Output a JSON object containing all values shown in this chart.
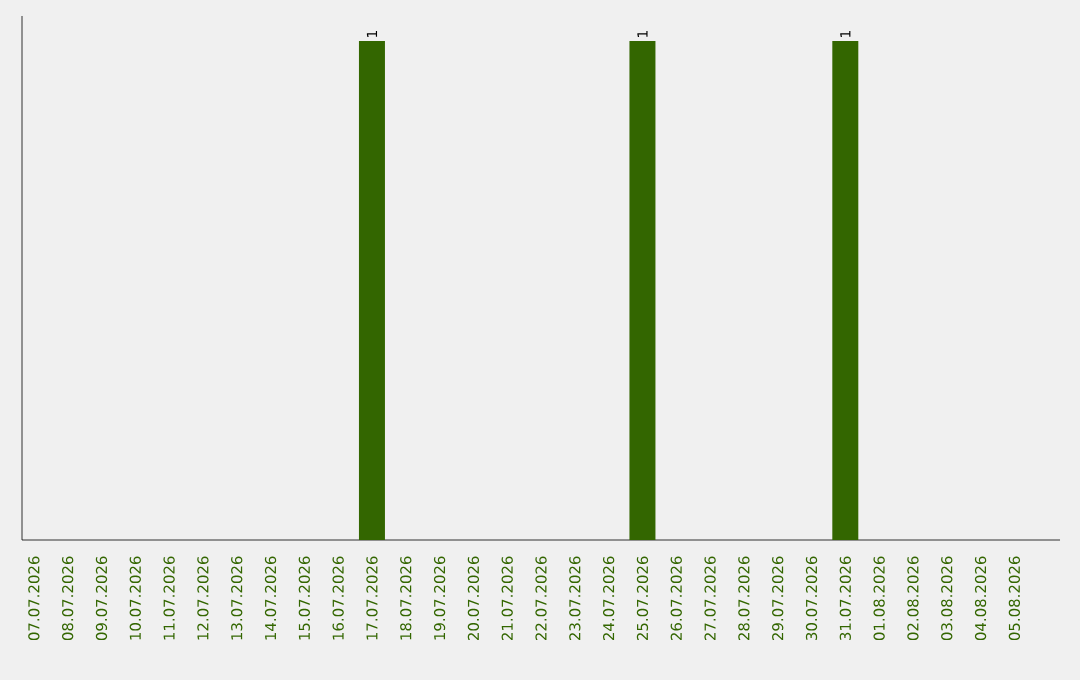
{
  "chart_data": {
    "type": "bar",
    "categories": [
      "07.07.2026",
      "08.07.2026",
      "09.07.2026",
      "10.07.2026",
      "11.07.2026",
      "12.07.2026",
      "13.07.2026",
      "14.07.2026",
      "15.07.2026",
      "16.07.2026",
      "17.07.2026",
      "18.07.2026",
      "19.07.2026",
      "20.07.2026",
      "21.07.2026",
      "22.07.2026",
      "23.07.2026",
      "24.07.2026",
      "25.07.2026",
      "26.07.2026",
      "27.07.2026",
      "28.07.2026",
      "29.07.2026",
      "30.07.2026",
      "31.07.2026",
      "01.08.2026",
      "02.08.2026",
      "03.08.2026",
      "04.08.2026",
      "05.08.2026"
    ],
    "values": [
      0,
      0,
      0,
      0,
      0,
      0,
      0,
      0,
      0,
      0,
      1,
      0,
      0,
      0,
      0,
      0,
      0,
      0,
      1,
      0,
      0,
      0,
      0,
      0,
      1,
      0,
      0,
      0,
      0,
      0
    ],
    "value_labels": [
      null,
      null,
      null,
      null,
      null,
      null,
      null,
      null,
      null,
      null,
      "1",
      null,
      null,
      null,
      null,
      null,
      null,
      null,
      "1",
      null,
      null,
      null,
      null,
      null,
      "1",
      null,
      null,
      null,
      null,
      null
    ],
    "color": "#336600",
    "tick_labels": "x"
  }
}
